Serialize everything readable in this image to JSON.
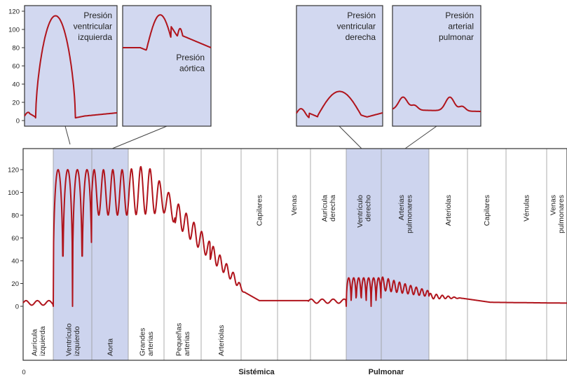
{
  "insets": [
    {
      "id": "lv",
      "lines": [
        "Presión",
        "ventricular",
        "izquierda"
      ],
      "anchor": "end"
    },
    {
      "id": "ao",
      "lines": [
        "Presión",
        "aórtica"
      ],
      "anchor": "end"
    },
    {
      "id": "rv",
      "lines": [
        "Presión",
        "ventricular",
        "derecha"
      ],
      "anchor": "end"
    },
    {
      "id": "pa",
      "lines": [
        "Presión",
        "arterial",
        "pulmonar"
      ],
      "anchor": "end"
    }
  ],
  "inset_yticks": [
    "120",
    "100",
    "80",
    "60",
    "40",
    "20",
    "0"
  ],
  "main_yticks": [
    "120",
    "100",
    "80",
    "60",
    "40",
    "20",
    "0"
  ],
  "regions": [
    {
      "id": "auricula-izquierda",
      "lines": [
        "Aurícula",
        "izquierda"
      ],
      "label_pos": "bottom"
    },
    {
      "id": "ventriculo-izquierdo",
      "lines": [
        "Ventrículo",
        "izquierdo"
      ],
      "label_pos": "bottom"
    },
    {
      "id": "aorta",
      "lines": [
        "Aorta"
      ],
      "label_pos": "bottom"
    },
    {
      "id": "grandes-arterias",
      "lines": [
        "Grandes",
        "arterias"
      ],
      "label_pos": "bottom"
    },
    {
      "id": "pequenas-arterias",
      "lines": [
        "Pequeñas",
        "arterias"
      ],
      "label_pos": "bottom"
    },
    {
      "id": "arteriolas-sistemicas",
      "lines": [
        "Arteriolas"
      ],
      "label_pos": "bottom"
    },
    {
      "id": "capilares-sistemicos",
      "lines": [
        "Capilares"
      ],
      "label_pos": "top"
    },
    {
      "id": "venas",
      "lines": [
        "Venas"
      ],
      "label_pos": "top"
    },
    {
      "id": "auricula-derecha",
      "lines": [
        "Aurícula",
        "derecha"
      ],
      "label_pos": "top"
    },
    {
      "id": "ventriculo-derecho",
      "lines": [
        "Ventrículo",
        "derecho"
      ],
      "label_pos": "top"
    },
    {
      "id": "arterias-pulmonares",
      "lines": [
        "Arterias",
        "pulmonares"
      ],
      "label_pos": "top"
    },
    {
      "id": "arteriolas-pulmonares",
      "lines": [
        "Arteriolas"
      ],
      "label_pos": "top"
    },
    {
      "id": "capilares-pulmonares",
      "lines": [
        "Capilares"
      ],
      "label_pos": "top"
    },
    {
      "id": "venulas",
      "lines": [
        "Vénulas"
      ],
      "label_pos": "top"
    },
    {
      "id": "venas-pulmonares",
      "lines": [
        "Venas",
        "pulmonares"
      ],
      "label_pos": "top"
    }
  ],
  "bottom_labels": {
    "zero": "0",
    "sistemica": "Sistémica",
    "pulmonar": "Pulmonar"
  },
  "colors": {
    "curve": "#b0141c",
    "shade": "#cdd4ee",
    "inset_bg": "#d2d8f0",
    "frame": "#333333",
    "divider": "#9a9a9a"
  }
}
